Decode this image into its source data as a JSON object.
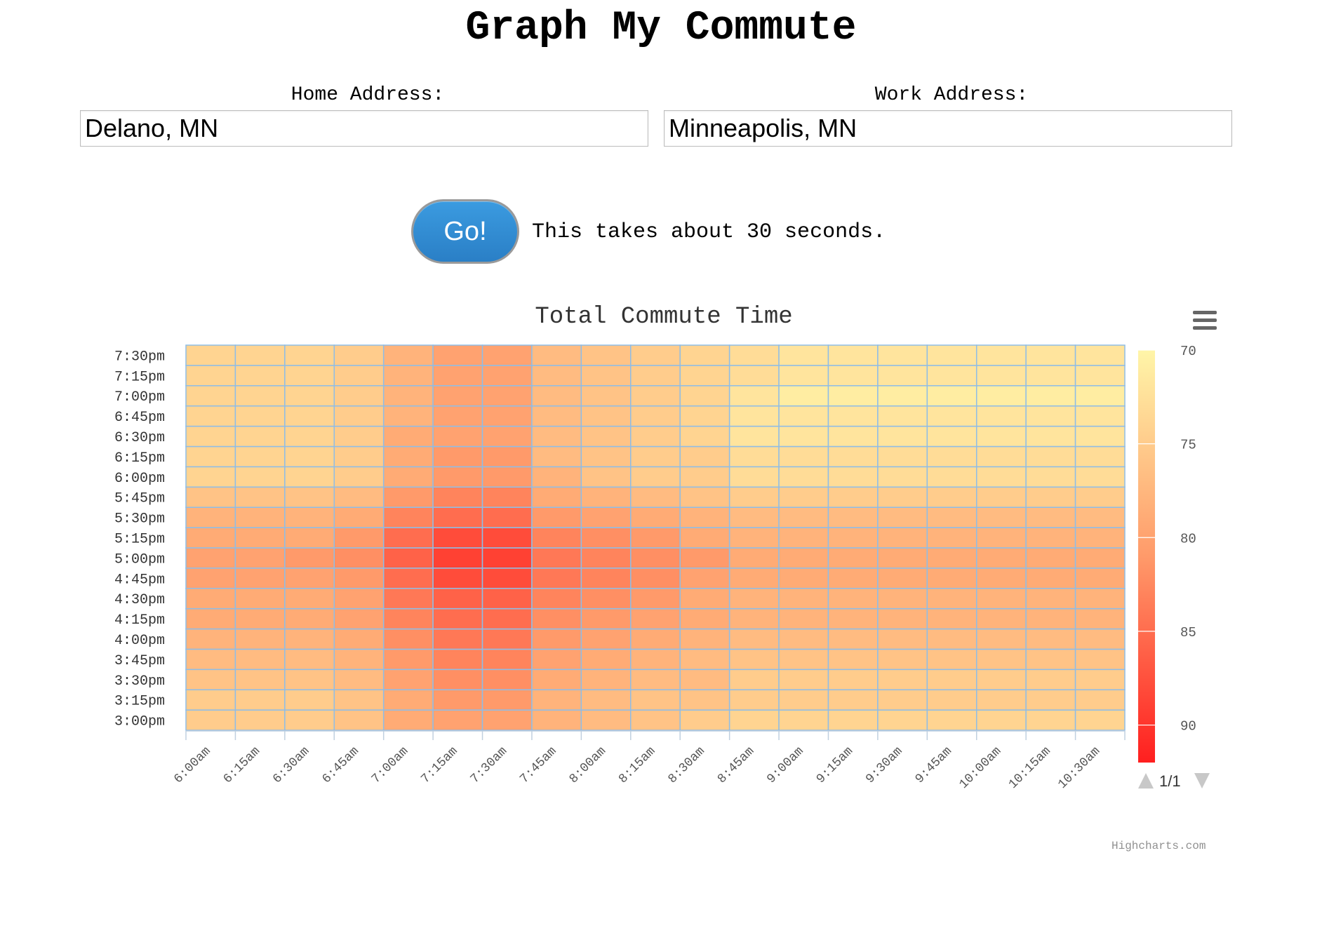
{
  "page": {
    "title": "Graph My Commute",
    "home_label": "Home Address:",
    "home_value": "Delano, MN",
    "work_label": "Work Address:",
    "work_value": "Minneapolis, MN",
    "go_label": "Go!",
    "hint": "This takes about 30 seconds.",
    "credits": "Highcharts.com",
    "menu_icon": "hamburger-menu-icon"
  },
  "chart_data": {
    "type": "heatmap",
    "title": "Total Commute Time",
    "x_categories": [
      "6:00am",
      "6:15am",
      "6:30am",
      "6:45am",
      "7:00am",
      "7:15am",
      "7:30am",
      "7:45am",
      "8:00am",
      "8:15am",
      "8:30am",
      "8:45am",
      "9:00am",
      "9:15am",
      "9:30am",
      "9:45am",
      "10:00am",
      "10:15am",
      "10:30am"
    ],
    "y_categories": [
      "3:00pm",
      "3:15pm",
      "3:30pm",
      "3:45pm",
      "4:00pm",
      "4:15pm",
      "4:30pm",
      "4:45pm",
      "5:00pm",
      "5:15pm",
      "5:30pm",
      "5:45pm",
      "6:00pm",
      "6:15pm",
      "6:30pm",
      "6:45pm",
      "7:00pm",
      "7:15pm",
      "7:30pm"
    ],
    "values": [
      [
        75,
        75,
        75,
        76,
        79,
        80,
        80,
        78,
        77,
        76,
        75,
        74,
        74,
        74,
        74,
        74,
        74,
        74,
        74
      ],
      [
        75,
        75,
        75,
        76,
        79,
        81,
        81,
        78,
        77,
        76,
        76,
        75,
        75,
        75,
        75,
        75,
        75,
        75,
        75
      ],
      [
        76,
        76,
        76,
        77,
        80,
        82,
        82,
        79,
        78,
        77,
        77,
        75,
        75,
        75,
        75,
        75,
        75,
        75,
        75
      ],
      [
        77,
        77,
        77,
        78,
        81,
        83,
        83,
        80,
        79,
        78,
        77,
        76,
        76,
        76,
        76,
        76,
        76,
        76,
        76
      ],
      [
        78,
        78,
        78,
        79,
        82,
        84,
        84,
        81,
        80,
        79,
        78,
        77,
        77,
        77,
        77,
        77,
        77,
        77,
        77
      ],
      [
        79,
        79,
        79,
        80,
        83,
        85,
        85,
        82,
        81,
        80,
        79,
        78,
        78,
        78,
        78,
        78,
        78,
        78,
        78
      ],
      [
        79,
        79,
        79,
        80,
        84,
        86,
        86,
        83,
        82,
        81,
        79,
        78,
        78,
        78,
        78,
        78,
        78,
        78,
        78
      ],
      [
        80,
        80,
        80,
        81,
        85,
        88,
        88,
        84,
        83,
        82,
        80,
        79,
        79,
        79,
        79,
        79,
        79,
        79,
        79
      ],
      [
        80,
        80,
        81,
        82,
        86,
        89,
        89,
        84,
        83,
        82,
        81,
        79,
        79,
        79,
        79,
        79,
        79,
        79,
        79
      ],
      [
        79,
        79,
        79,
        81,
        85,
        88,
        88,
        83,
        82,
        81,
        79,
        78,
        78,
        78,
        78,
        78,
        78,
        78,
        78
      ],
      [
        78,
        78,
        78,
        79,
        83,
        85,
        85,
        81,
        80,
        79,
        78,
        77,
        77,
        77,
        77,
        77,
        77,
        77,
        77
      ],
      [
        76,
        76,
        76,
        77,
        81,
        83,
        83,
        79,
        78,
        77,
        76,
        75,
        75,
        75,
        75,
        75,
        75,
        75,
        75
      ],
      [
        74,
        74,
        74,
        75,
        79,
        81,
        81,
        78,
        76,
        75,
        75,
        73,
        73,
        73,
        73,
        73,
        73,
        73,
        73
      ],
      [
        74,
        74,
        74,
        75,
        79,
        81,
        81,
        77,
        76,
        75,
        75,
        73,
        73,
        73,
        73,
        73,
        73,
        73,
        73
      ],
      [
        74,
        74,
        74,
        75,
        79,
        80,
        80,
        77,
        76,
        75,
        74,
        72,
        72,
        72,
        72,
        72,
        72,
        72,
        72
      ],
      [
        74,
        74,
        74,
        75,
        78,
        80,
        80,
        77,
        76,
        75,
        74,
        72,
        72,
        72,
        72,
        72,
        72,
        72,
        72
      ],
      [
        74,
        74,
        74,
        75,
        78,
        80,
        80,
        77,
        76,
        75,
        74,
        72,
        71,
        71,
        71,
        71,
        71,
        71,
        71
      ],
      [
        74,
        74,
        74,
        75,
        78,
        80,
        80,
        77,
        76,
        75,
        74,
        73,
        72,
        72,
        72,
        72,
        72,
        72,
        72
      ],
      [
        74,
        74,
        74,
        75,
        78,
        80,
        80,
        77,
        76,
        75,
        74,
        73,
        72,
        72,
        72,
        72,
        72,
        72,
        72
      ]
    ],
    "color_axis": {
      "min": 70,
      "max": 92,
      "tick_labels": [
        "70",
        "75",
        "80",
        "85",
        "90"
      ],
      "min_color": "#fff5a8",
      "mid_color": "#ff9a6a",
      "max_color": "#ff1f1f"
    },
    "legend_nav": "1/1",
    "grid_color": "#8fbde6"
  }
}
